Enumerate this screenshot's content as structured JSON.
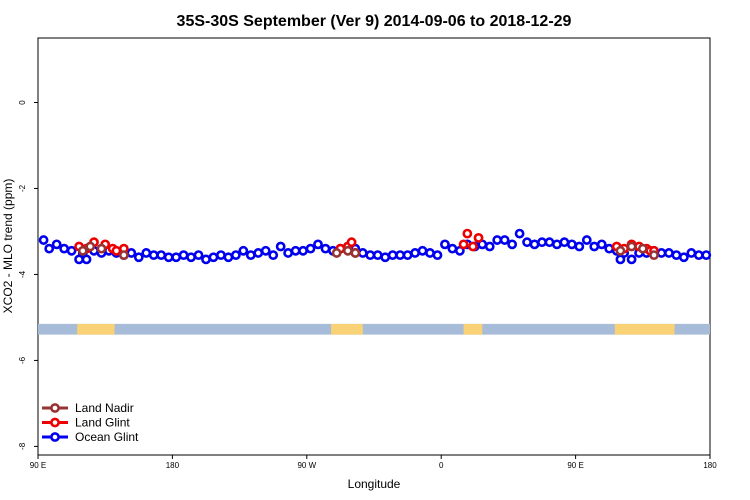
{
  "chart_data": {
    "type": "scatter",
    "title": "35S-30S September (Ver 9)   2014-09-06 to 2018-12-29",
    "xlabel": "Longitude",
    "ylabel": "XCO2 - MLO trend (ppm)",
    "xlim": [
      90,
      450
    ],
    "ylim": [
      -8.2,
      1.5
    ],
    "x_ticks": [
      {
        "value": 90,
        "label": "90 E"
      },
      {
        "value": 162,
        "label": "180"
      },
      {
        "value": 234,
        "label": "90 W"
      },
      {
        "value": 306,
        "label": "0"
      },
      {
        "value": 378,
        "label": "90 E"
      },
      {
        "value": 450,
        "label": "180"
      }
    ],
    "y_ticks": [
      {
        "value": 0,
        "label": "0"
      },
      {
        "value": -2,
        "label": "-2"
      },
      {
        "value": -4,
        "label": "-4"
      },
      {
        "value": -6,
        "label": "-6"
      },
      {
        "value": -8,
        "label": "-8"
      }
    ],
    "land_mask": {
      "y_range": [
        -5.4,
        -5.15
      ],
      "ocean_color": "#a7bcd9",
      "land_color": "#f9d276",
      "land_segments": [
        [
          111,
          131
        ],
        [
          247,
          264
        ],
        [
          318,
          328
        ],
        [
          399,
          431
        ]
      ]
    },
    "legend": {
      "position": "bottom-left",
      "entries": [
        "Land Nadir",
        "Land Glint",
        "Ocean Glint"
      ]
    },
    "series": [
      {
        "name": "Ocean Glint",
        "color": "#0000ee",
        "x": [
          93,
          96,
          100,
          104,
          108,
          112,
          114,
          116,
          120,
          124,
          128,
          132,
          136,
          140,
          144,
          148,
          152,
          156,
          160,
          164,
          168,
          172,
          176,
          180,
          184,
          188,
          192,
          196,
          200,
          204,
          208,
          212,
          216,
          220,
          224,
          228,
          232,
          236,
          240,
          244,
          248,
          252,
          256,
          260,
          264,
          268,
          272,
          276,
          280,
          284,
          288,
          292,
          296,
          300,
          304,
          308,
          312,
          316,
          320,
          324,
          328,
          332,
          336,
          340,
          344,
          348,
          352,
          356,
          360,
          364,
          368,
          372,
          376,
          380,
          384,
          388,
          392,
          396,
          400,
          402,
          404,
          408,
          412,
          416,
          420,
          424,
          428,
          432,
          436,
          440,
          444,
          448
        ],
        "y": [
          -3.2,
          -3.4,
          -3.3,
          -3.4,
          -3.45,
          -3.65,
          -3.5,
          -3.65,
          -3.45,
          -3.5,
          -3.45,
          -3.5,
          -3.55,
          -3.5,
          -3.6,
          -3.5,
          -3.55,
          -3.55,
          -3.6,
          -3.6,
          -3.55,
          -3.6,
          -3.55,
          -3.65,
          -3.6,
          -3.55,
          -3.6,
          -3.55,
          -3.45,
          -3.55,
          -3.5,
          -3.45,
          -3.55,
          -3.35,
          -3.5,
          -3.45,
          -3.45,
          -3.4,
          -3.3,
          -3.4,
          -3.45,
          -3.4,
          -3.35,
          -3.4,
          -3.5,
          -3.55,
          -3.55,
          -3.6,
          -3.55,
          -3.55,
          -3.55,
          -3.5,
          -3.45,
          -3.5,
          -3.55,
          -3.3,
          -3.4,
          -3.45,
          -3.3,
          -3.35,
          -3.3,
          -3.35,
          -3.2,
          -3.2,
          -3.3,
          -3.05,
          -3.25,
          -3.3,
          -3.25,
          -3.25,
          -3.3,
          -3.25,
          -3.3,
          -3.35,
          -3.2,
          -3.35,
          -3.3,
          -3.4,
          -3.45,
          -3.65,
          -3.5,
          -3.65,
          -3.5,
          -3.5,
          -3.45,
          -3.5,
          -3.5,
          -3.55,
          -3.6,
          -3.5,
          -3.55,
          -3.55
        ]
      },
      {
        "name": "Land Glint",
        "color": "#ee0000",
        "x": [
          112,
          116,
          120,
          126,
          130,
          132,
          136,
          252,
          256,
          258,
          260,
          318,
          320,
          323,
          326,
          400,
          404,
          408,
          412,
          416,
          418,
          420
        ],
        "y": [
          -3.35,
          -3.4,
          -3.25,
          -3.3,
          -3.4,
          -3.45,
          -3.4,
          -3.4,
          -3.35,
          -3.25,
          -3.5,
          -3.3,
          -3.05,
          -3.35,
          -3.15,
          -3.35,
          -3.4,
          -3.3,
          -3.35,
          -3.4,
          -3.45,
          -3.45
        ]
      },
      {
        "name": "Land Nadir",
        "color": "#993333",
        "x": [
          114,
          118,
          124,
          136,
          250,
          256,
          260,
          402,
          408,
          414,
          420
        ],
        "y": [
          -3.45,
          -3.35,
          -3.4,
          -3.55,
          -3.5,
          -3.45,
          -3.5,
          -3.45,
          -3.35,
          -3.4,
          -3.55
        ]
      }
    ]
  }
}
